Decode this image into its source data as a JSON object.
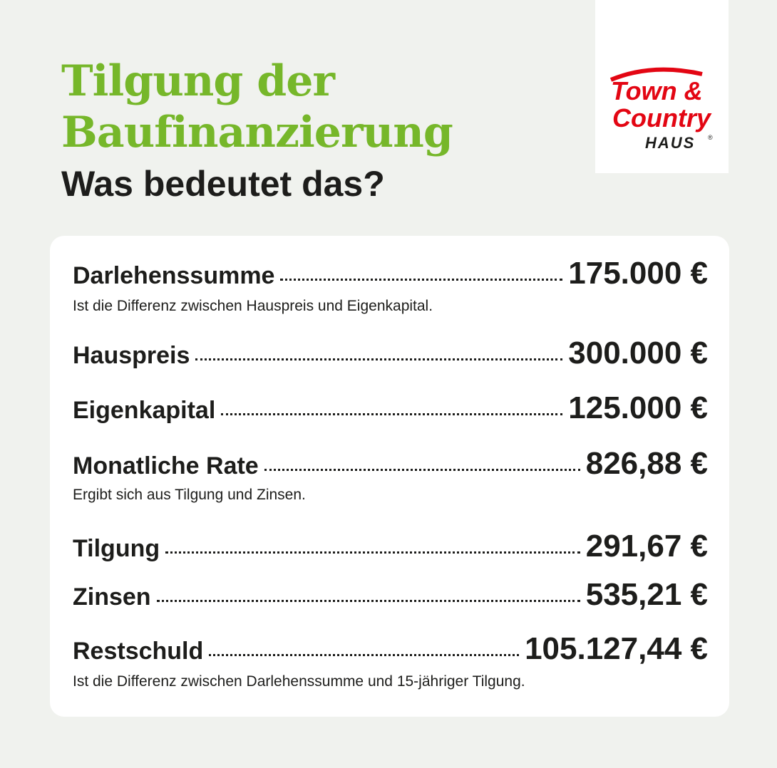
{
  "header": {
    "title_line1": "Tilgung der",
    "title_line2": "Baufinanzierung",
    "subtitle": "Was bedeutet das?"
  },
  "logo": {
    "line1": "Town &",
    "line2": "Country",
    "line3": "HAUS",
    "mark": "®",
    "color": "#e30613"
  },
  "colors": {
    "accent": "#76b72a",
    "background": "#f0f2ee",
    "text": "#1d1d1b"
  },
  "rows": [
    {
      "label": "Darlehenssumme",
      "value": "175.000 €",
      "note": "Ist die Differenz zwischen Hauspreis und Eigenkapital."
    },
    {
      "label": "Hauspreis",
      "value": "300.000 €"
    },
    {
      "label": "Eigenkapital",
      "value": "125.000 €"
    },
    {
      "label": "Monatliche Rate",
      "value": "826,88 €",
      "note": "Ergibt sich aus Tilgung und Zinsen."
    },
    {
      "label": "Tilgung",
      "value": "291,67 €"
    },
    {
      "label": "Zinsen",
      "value": "535,21 €"
    },
    {
      "label": "Restschuld",
      "value": "105.127,44 €",
      "note": "Ist die Differenz zwischen Darlehenssumme und 15-jähriger Tilgung."
    }
  ]
}
